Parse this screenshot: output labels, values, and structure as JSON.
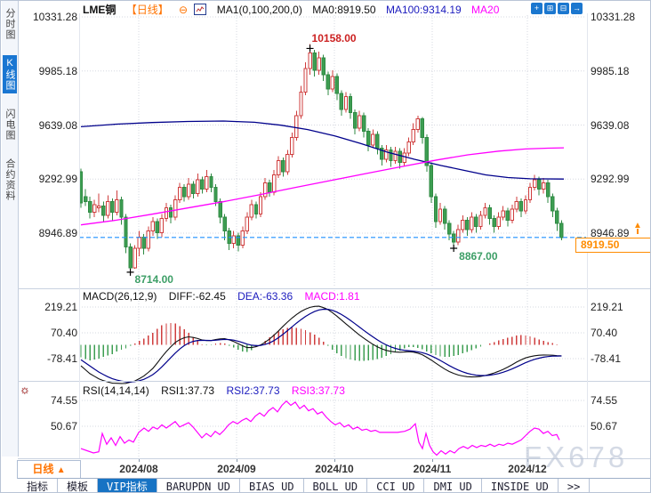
{
  "header": {
    "symbol": "LME铜",
    "period_tag": "【日线】",
    "collapse_icon_glyph": "⊖",
    "ma_settings": "MA1(0,100,200,0)",
    "ma0_label": "MA0:8919.50",
    "ma100_label": "MA100:9314.19",
    "ma20_label": "MA20",
    "icons": [
      {
        "name": "pan-icon",
        "glyph": "+"
      },
      {
        "name": "zoom-out-icon",
        "glyph": "⊞"
      },
      {
        "name": "zoom-in-icon",
        "glyph": "⊟"
      },
      {
        "name": "exit-icon",
        "glyph": "→"
      }
    ]
  },
  "sidebar": {
    "items": [
      {
        "label": "分时图",
        "active": false
      },
      {
        "label": "K线图",
        "active": true
      },
      {
        "label": "闪电图",
        "active": false
      },
      {
        "label": "合约资料",
        "active": false
      }
    ]
  },
  "main_chart": {
    "y_ticks": [
      {
        "t": "10331.28",
        "v": 10331.28
      },
      {
        "t": "9985.18",
        "v": 9985.18
      },
      {
        "t": "9639.08",
        "v": 9639.08
      },
      {
        "t": "9292.99",
        "v": 9292.99
      },
      {
        "t": "8946.89",
        "v": 8946.89
      }
    ],
    "current_price": "8919.50",
    "high_label": "10158.00",
    "low1_label": "8714.00",
    "low2_label": "8867.00"
  },
  "macd": {
    "title": "MACD(26,12,9)",
    "diff_label": "DIFF:-62.45",
    "dea_label": "DEA:-63.36",
    "macd_label": "MACD:1.81",
    "y_ticks": [
      {
        "t": "219.21",
        "v": 219.21
      },
      {
        "t": "70.40",
        "v": 70.4
      },
      {
        "t": "-78.41",
        "v": -78.41
      }
    ]
  },
  "rsi": {
    "title": "RSI(14,14,14)",
    "rsi1_label": "RSI1:37.73",
    "rsi2_label": "RSI2:37.73",
    "rsi3_label": "RSI3:37.73",
    "y_ticks": [
      {
        "t": "74.55",
        "v": 74.55
      },
      {
        "t": "50.67",
        "v": 50.67
      }
    ]
  },
  "x_axis": {
    "labels": [
      "2024/08",
      "2024/09",
      "2024/10",
      "2024/11",
      "2024/12"
    ],
    "positions": [
      155,
      265,
      375,
      485,
      592
    ]
  },
  "period_box_label": "日线",
  "period_box_arrow": "▲",
  "watermark": "FX678",
  "toolbar": {
    "tabs": [
      {
        "label": "指标",
        "active": false
      },
      {
        "label": "模板",
        "active": false
      },
      {
        "label": "VIP指标",
        "active": true
      },
      {
        "label": "BARUPDN_UD",
        "active": false
      },
      {
        "label": "BIAS_UD",
        "active": false
      },
      {
        "label": "BOLL_UD",
        "active": false
      },
      {
        "label": "CCI_UD",
        "active": false
      },
      {
        "label": "DMI_UD",
        "active": false
      },
      {
        "label": "INSIDE_UD",
        "active": false
      },
      {
        "label": ">>",
        "active": false
      }
    ]
  },
  "colors": {
    "up": "#cf3d3d",
    "down": "#3d9e52",
    "down_stroke": "#2f8a43",
    "ma100": "#00008b",
    "ma200": "#ff00ff",
    "diff": "#111111",
    "dea": "#00008b",
    "rsi_line": "#ff00ff",
    "grid": "#d6d8e0",
    "dash_line": "#1e90ff",
    "red_label": "#cc2222",
    "green_label": "#3c9e66",
    "orange": "#ff8c00",
    "accent_blue": "#1773c4"
  },
  "chart_data": {
    "type": "candlestick",
    "title": "LME铜 日线 (LME Copper daily)",
    "price_axis_range": [
      8599,
      10354
    ],
    "marked_high": 10158.0,
    "marked_lows": [
      8714.0,
      8867.0
    ],
    "last_close": 8919.5,
    "candles_ohlc": [
      [
        9340,
        9360,
        9110,
        9140
      ],
      [
        9180,
        9230,
        9120,
        9150
      ],
      [
        9150,
        9180,
        9040,
        9080
      ],
      [
        9080,
        9160,
        9050,
        9130
      ],
      [
        9110,
        9200,
        9080,
        9120
      ],
      [
        9120,
        9150,
        9020,
        9060
      ],
      [
        9060,
        9190,
        9040,
        9150
      ],
      [
        9150,
        9170,
        9030,
        9080
      ],
      [
        9080,
        9220,
        9060,
        9160
      ],
      [
        9160,
        9180,
        9000,
        9050
      ],
      [
        9050,
        9070,
        8820,
        8860
      ],
      [
        8860,
        8880,
        8714,
        8725
      ],
      [
        8725,
        8870,
        8720,
        8850
      ],
      [
        8850,
        8960,
        8800,
        8920
      ],
      [
        8920,
        8940,
        8810,
        8850
      ],
      [
        8850,
        8990,
        8830,
        8960
      ],
      [
        8960,
        9050,
        8930,
        9020
      ],
      [
        9020,
        9040,
        8910,
        8950
      ],
      [
        8950,
        9070,
        8920,
        9040
      ],
      [
        9040,
        9140,
        9020,
        9110
      ],
      [
        9110,
        9130,
        9010,
        9050
      ],
      [
        9050,
        9190,
        9030,
        9160
      ],
      [
        9160,
        9270,
        9140,
        9240
      ],
      [
        9240,
        9260,
        9150,
        9180
      ],
      [
        9180,
        9300,
        9160,
        9260
      ],
      [
        9260,
        9280,
        9170,
        9200
      ],
      [
        9200,
        9330,
        9180,
        9290
      ],
      [
        9290,
        9310,
        9200,
        9230
      ],
      [
        9230,
        9350,
        9210,
        9310
      ],
      [
        9310,
        9330,
        9210,
        9240
      ],
      [
        9240,
        9260,
        9120,
        9150
      ],
      [
        9150,
        9170,
        9010,
        9050
      ],
      [
        9050,
        9070,
        8900,
        8960
      ],
      [
        8960,
        8980,
        8840,
        8880
      ],
      [
        8880,
        8960,
        8850,
        8930
      ],
      [
        8930,
        8950,
        8830,
        8870
      ],
      [
        8870,
        8990,
        8850,
        8960
      ],
      [
        8960,
        9080,
        8940,
        9050
      ],
      [
        9050,
        9160,
        9030,
        9130
      ],
      [
        9130,
        9150,
        9040,
        9070
      ],
      [
        9070,
        9210,
        9050,
        9180
      ],
      [
        9180,
        9300,
        9160,
        9270
      ],
      [
        9270,
        9290,
        9180,
        9210
      ],
      [
        9210,
        9350,
        9190,
        9320
      ],
      [
        9320,
        9440,
        9300,
        9410
      ],
      [
        9410,
        9430,
        9310,
        9340
      ],
      [
        9340,
        9480,
        9320,
        9450
      ],
      [
        9450,
        9590,
        9430,
        9560
      ],
      [
        9560,
        9730,
        9540,
        9700
      ],
      [
        9700,
        9890,
        9680,
        9850
      ],
      [
        9850,
        10040,
        9830,
        10000
      ],
      [
        10000,
        10158,
        9960,
        10100
      ],
      [
        10100,
        10120,
        9950,
        9990
      ],
      [
        9990,
        10110,
        9960,
        10070
      ],
      [
        10070,
        10090,
        9920,
        9960
      ],
      [
        9960,
        9980,
        9830,
        9870
      ],
      [
        9870,
        9990,
        9850,
        9950
      ],
      [
        9950,
        9970,
        9800,
        9840
      ],
      [
        9840,
        9860,
        9700,
        9740
      ],
      [
        9740,
        9850,
        9720,
        9820
      ],
      [
        9820,
        9840,
        9680,
        9720
      ],
      [
        9720,
        9740,
        9580,
        9620
      ],
      [
        9620,
        9730,
        9600,
        9700
      ],
      [
        9700,
        9720,
        9560,
        9600
      ],
      [
        9600,
        9620,
        9470,
        9510
      ],
      [
        9510,
        9610,
        9490,
        9580
      ],
      [
        9580,
        9600,
        9450,
        9490
      ],
      [
        9490,
        9510,
        9380,
        9420
      ],
      [
        9420,
        9510,
        9400,
        9480
      ],
      [
        9480,
        9500,
        9370,
        9410
      ],
      [
        9410,
        9500,
        9390,
        9470
      ],
      [
        9470,
        9490,
        9360,
        9400
      ],
      [
        9400,
        9490,
        9380,
        9460
      ],
      [
        9460,
        9560,
        9440,
        9530
      ],
      [
        9530,
        9650,
        9510,
        9610
      ],
      [
        9610,
        9700,
        9590,
        9680
      ],
      [
        9680,
        9690,
        9520,
        9560
      ],
      [
        9560,
        9580,
        9340,
        9380
      ],
      [
        9380,
        9400,
        9140,
        9180
      ],
      [
        9180,
        9200,
        8980,
        9020
      ],
      [
        9020,
        9140,
        9000,
        9100
      ],
      [
        9100,
        9120,
        8970,
        9010
      ],
      [
        9010,
        9030,
        8900,
        8940
      ],
      [
        8940,
        8960,
        8867,
        8890
      ],
      [
        8890,
        9000,
        8870,
        8970
      ],
      [
        8970,
        9060,
        8950,
        9030
      ],
      [
        9030,
        9050,
        8930,
        8970
      ],
      [
        8970,
        9080,
        8950,
        9050
      ],
      [
        9050,
        9070,
        8950,
        8990
      ],
      [
        8990,
        9090,
        8970,
        9060
      ],
      [
        9060,
        9140,
        9040,
        9110
      ],
      [
        9110,
        9130,
        9000,
        9040
      ],
      [
        9040,
        9060,
        8950,
        8990
      ],
      [
        8990,
        9080,
        8970,
        9050
      ],
      [
        9050,
        9120,
        9030,
        9090
      ],
      [
        9090,
        9110,
        8990,
        9030
      ],
      [
        9030,
        9130,
        9010,
        9100
      ],
      [
        9100,
        9180,
        9080,
        9150
      ],
      [
        9150,
        9170,
        9050,
        9090
      ],
      [
        9090,
        9190,
        9070,
        9160
      ],
      [
        9160,
        9270,
        9140,
        9240
      ],
      [
        9240,
        9320,
        9220,
        9290
      ],
      [
        9290,
        9310,
        9190,
        9230
      ],
      [
        9230,
        9300,
        9200,
        9270
      ],
      [
        9270,
        9290,
        9140,
        9180
      ],
      [
        9180,
        9200,
        9050,
        9090
      ],
      [
        9090,
        9110,
        8960,
        9010
      ],
      [
        9010,
        9030,
        8900,
        8919.5
      ]
    ],
    "ma100_points": [
      [
        90,
        9628
      ],
      [
        130,
        9645
      ],
      [
        170,
        9655
      ],
      [
        210,
        9662
      ],
      [
        250,
        9665
      ],
      [
        285,
        9657
      ],
      [
        315,
        9638
      ],
      [
        345,
        9610
      ],
      [
        375,
        9570
      ],
      [
        405,
        9520
      ],
      [
        435,
        9465
      ],
      [
        465,
        9420
      ],
      [
        495,
        9380
      ],
      [
        520,
        9350
      ],
      [
        545,
        9320
      ],
      [
        570,
        9303
      ],
      [
        595,
        9295
      ],
      [
        633,
        9293
      ]
    ],
    "ma200_points": [
      [
        90,
        9000
      ],
      [
        130,
        9030
      ],
      [
        170,
        9068
      ],
      [
        210,
        9108
      ],
      [
        250,
        9148
      ],
      [
        290,
        9192
      ],
      [
        330,
        9238
      ],
      [
        370,
        9283
      ],
      [
        410,
        9328
      ],
      [
        450,
        9372
      ],
      [
        490,
        9415
      ],
      [
        525,
        9448
      ],
      [
        560,
        9472
      ],
      [
        590,
        9486
      ],
      [
        615,
        9491
      ],
      [
        633,
        9493
      ]
    ],
    "macd_diff_points": [
      [
        90,
        -120
      ],
      [
        100,
        -165
      ],
      [
        112,
        -200
      ],
      [
        125,
        -220
      ],
      [
        140,
        -222
      ],
      [
        152,
        -205
      ],
      [
        162,
        -175
      ],
      [
        172,
        -130
      ],
      [
        180,
        -75
      ],
      [
        188,
        -25
      ],
      [
        196,
        15
      ],
      [
        204,
        40
      ],
      [
        212,
        48
      ],
      [
        220,
        40
      ],
      [
        228,
        26
      ],
      [
        236,
        25
      ],
      [
        244,
        35
      ],
      [
        252,
        37
      ],
      [
        260,
        25
      ],
      [
        268,
        5
      ],
      [
        276,
        -15
      ],
      [
        284,
        -15
      ],
      [
        292,
        0
      ],
      [
        300,
        25
      ],
      [
        310,
        70
      ],
      [
        320,
        122
      ],
      [
        330,
        168
      ],
      [
        340,
        202
      ],
      [
        350,
        222
      ],
      [
        358,
        224
      ],
      [
        366,
        210
      ],
      [
        374,
        183
      ],
      [
        382,
        148
      ],
      [
        392,
        105
      ],
      [
        402,
        62
      ],
      [
        412,
        25
      ],
      [
        422,
        -8
      ],
      [
        432,
        -30
      ],
      [
        442,
        -40
      ],
      [
        450,
        -42
      ],
      [
        458,
        -38
      ],
      [
        466,
        -42
      ],
      [
        474,
        -56
      ],
      [
        482,
        -80
      ],
      [
        492,
        -115
      ],
      [
        502,
        -148
      ],
      [
        512,
        -170
      ],
      [
        522,
        -182
      ],
      [
        532,
        -185
      ],
      [
        542,
        -179
      ],
      [
        552,
        -166
      ],
      [
        562,
        -147
      ],
      [
        572,
        -122
      ],
      [
        582,
        -92
      ],
      [
        592,
        -70
      ],
      [
        602,
        -60
      ],
      [
        612,
        -57
      ],
      [
        620,
        -59
      ],
      [
        628,
        -62.45
      ]
    ],
    "rsi_points": [
      [
        90,
        30
      ],
      [
        97,
        28
      ],
      [
        104,
        26
      ],
      [
        110,
        27
      ],
      [
        114,
        44
      ],
      [
        119,
        34
      ],
      [
        124,
        40
      ],
      [
        129,
        33
      ],
      [
        134,
        41
      ],
      [
        139,
        35
      ],
      [
        144,
        38
      ],
      [
        149,
        36
      ],
      [
        155,
        45
      ],
      [
        161,
        49
      ],
      [
        166,
        46
      ],
      [
        171,
        50
      ],
      [
        176,
        48
      ],
      [
        181,
        52
      ],
      [
        186,
        49
      ],
      [
        191,
        52
      ],
      [
        196,
        55
      ],
      [
        201,
        50
      ],
      [
        206,
        52
      ],
      [
        211,
        54
      ],
      [
        216,
        50
      ],
      [
        221,
        45
      ],
      [
        226,
        40
      ],
      [
        231,
        44
      ],
      [
        236,
        41
      ],
      [
        241,
        46
      ],
      [
        246,
        43
      ],
      [
        251,
        47
      ],
      [
        256,
        52
      ],
      [
        261,
        55
      ],
      [
        266,
        53
      ],
      [
        271,
        56
      ],
      [
        276,
        58
      ],
      [
        281,
        55
      ],
      [
        286,
        60
      ],
      [
        291,
        63
      ],
      [
        296,
        60
      ],
      [
        301,
        65
      ],
      [
        306,
        68
      ],
      [
        311,
        64
      ],
      [
        316,
        70
      ],
      [
        321,
        74
      ],
      [
        326,
        70
      ],
      [
        331,
        73
      ],
      [
        336,
        67
      ],
      [
        341,
        70
      ],
      [
        346,
        65
      ],
      [
        351,
        67
      ],
      [
        356,
        62
      ],
      [
        361,
        64
      ],
      [
        366,
        59
      ],
      [
        371,
        55
      ],
      [
        376,
        52
      ],
      [
        381,
        54
      ],
      [
        386,
        50
      ],
      [
        391,
        52
      ],
      [
        396,
        48
      ],
      [
        401,
        50
      ],
      [
        406,
        47
      ],
      [
        411,
        48
      ],
      [
        416,
        46
      ],
      [
        421,
        47
      ],
      [
        426,
        45
      ],
      [
        436,
        45
      ],
      [
        446,
        45
      ],
      [
        454,
        46
      ],
      [
        460,
        48
      ],
      [
        466,
        53
      ],
      [
        470,
        36
      ],
      [
        474,
        30
      ],
      [
        478,
        44
      ],
      [
        482,
        33
      ],
      [
        486,
        27
      ],
      [
        490,
        24
      ],
      [
        495,
        28
      ],
      [
        500,
        25
      ],
      [
        505,
        28
      ],
      [
        510,
        26
      ],
      [
        515,
        30
      ],
      [
        520,
        32
      ],
      [
        525,
        30
      ],
      [
        530,
        33
      ],
      [
        535,
        31
      ],
      [
        540,
        33
      ],
      [
        545,
        32
      ],
      [
        550,
        34
      ],
      [
        555,
        32
      ],
      [
        560,
        34
      ],
      [
        565,
        33
      ],
      [
        570,
        35
      ],
      [
        575,
        34
      ],
      [
        580,
        36
      ],
      [
        585,
        38
      ],
      [
        590,
        42
      ],
      [
        595,
        46
      ],
      [
        600,
        49
      ],
      [
        605,
        48
      ],
      [
        610,
        44
      ],
      [
        615,
        46
      ],
      [
        620,
        42
      ],
      [
        625,
        43
      ],
      [
        628,
        38
      ]
    ]
  }
}
